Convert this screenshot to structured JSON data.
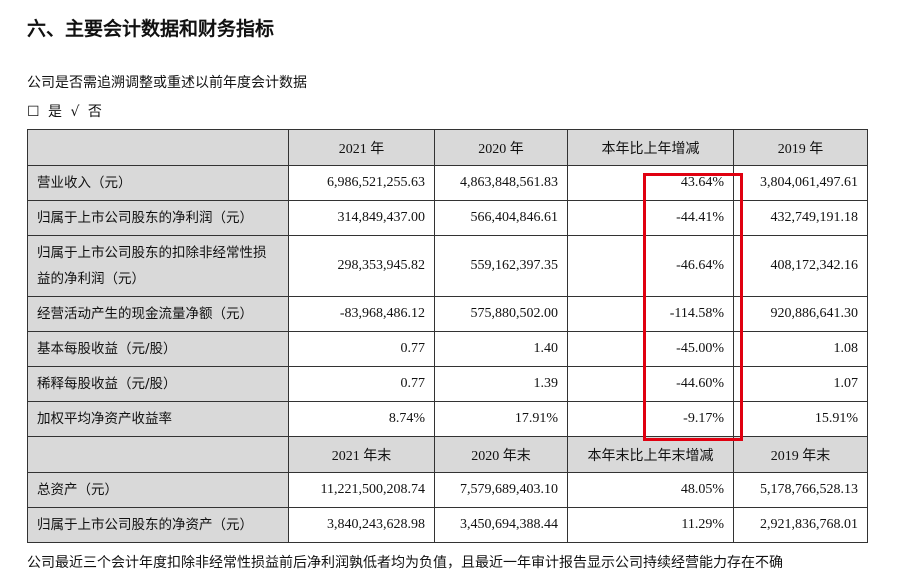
{
  "heading": "六、主要会计数据和财务指标",
  "question": "公司是否需追溯调整或重述以前年度会计数据",
  "options": "☐ 是 √ 否",
  "table1": {
    "headers": [
      "",
      "2021 年",
      "2020 年",
      "本年比上年增减",
      "2019 年"
    ],
    "rows": [
      [
        "营业收入（元）",
        "6,986,521,255.63",
        "4,863,848,561.83",
        "43.64%",
        "3,804,061,497.61"
      ],
      [
        "归属于上市公司股东的净利润（元）",
        "314,849,437.00",
        "566,404,846.61",
        "-44.41%",
        "432,749,191.18"
      ],
      [
        "归属于上市公司股东的扣除非经常性损益的净利润（元）",
        "298,353,945.82",
        "559,162,397.35",
        "-46.64%",
        "408,172,342.16"
      ],
      [
        "经营活动产生的现金流量净额（元）",
        "-83,968,486.12",
        "575,880,502.00",
        "-114.58%",
        "920,886,641.30"
      ],
      [
        "基本每股收益（元/股）",
        "0.77",
        "1.40",
        "-45.00%",
        "1.08"
      ],
      [
        "稀释每股收益（元/股）",
        "0.77",
        "1.39",
        "-44.60%",
        "1.07"
      ],
      [
        "加权平均净资产收益率",
        "8.74%",
        "17.91%",
        "-9.17%",
        "15.91%"
      ]
    ]
  },
  "table2": {
    "headers": [
      "",
      "2021 年末",
      "2020 年末",
      "本年末比上年末增减",
      "2019 年末"
    ],
    "rows": [
      [
        "总资产（元）",
        "11,221,500,208.74",
        "7,579,689,403.10",
        "48.05%",
        "5,178,766,528.13"
      ],
      [
        "归属于上市公司股东的净资产（元）",
        "3,840,243,628.98",
        "3,450,694,388.44",
        "11.29%",
        "2,921,836,768.01"
      ]
    ]
  },
  "footer": "公司最近三个会计年度扣除非经常性损益前后净利润孰低者均为负值，且最近一年审计报告显示公司持续经营能力存在不确",
  "colors": {
    "highlight_box": "#e00010",
    "header_bg": "#d9d9d9"
  }
}
